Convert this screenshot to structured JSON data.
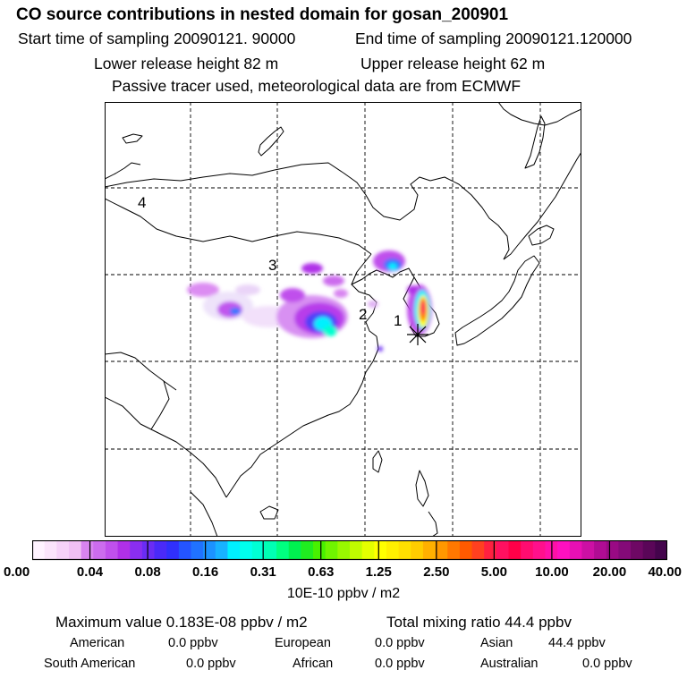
{
  "header": {
    "title": "CO  source contributions in nested domain for gosan_200901",
    "start_sampling": "Start time of sampling 20090121. 90000",
    "end_sampling": "End time of sampling 20090121.120000",
    "lower_release": "Lower release height   82 m",
    "upper_release": "Upper release height   62 m",
    "tracer_note": "Passive tracer used, meteorological data are from ECMWF"
  },
  "map": {
    "region_labels": [
      "1",
      "2",
      "3",
      "4"
    ],
    "receptor_marker": "asterisk-icon"
  },
  "colorbar": {
    "ticks": [
      "0.00",
      "0.04",
      "0.08",
      "0.16",
      "0.31",
      "0.63",
      "1.25",
      "2.50",
      "5.00",
      "10.00",
      "20.00",
      "40.00"
    ],
    "unit_label": "10E-10 ppbv / m2",
    "colors": [
      "#fff3ff",
      "#fbe4fb",
      "#f6d2f8",
      "#f0c0f4",
      "#d884f0",
      "#cc6cee",
      "#c050ec",
      "#b030e8",
      "#8a2ef0",
      "#6a2cf4",
      "#4a2af8",
      "#3030fc",
      "#2454ff",
      "#2072ff",
      "#1c92ff",
      "#18b2ff",
      "#00f0ff",
      "#00ffee",
      "#00ffd4",
      "#00ffb4",
      "#00ff80",
      "#00f050",
      "#20ec20",
      "#48f000",
      "#70f400",
      "#98f800",
      "#c0fc00",
      "#e4ff00",
      "#ffff00",
      "#fff000",
      "#ffe000",
      "#ffcc00",
      "#ffb000",
      "#ff9800",
      "#ff7800",
      "#ff5a00",
      "#ff4020",
      "#ff2040",
      "#ff1060",
      "#ff0048",
      "#ff0c70",
      "#ff108c",
      "#ff10a8",
      "#ff10c0",
      "#e810b4",
      "#cc10a4",
      "#b00c94",
      "#9a0a84",
      "#840a78",
      "#6e0864",
      "#5a0658",
      "#44044c"
    ]
  },
  "summary": {
    "max_value": "Maximum value  0.183E-08 ppbv / m2",
    "total_mixing": "Total mixing ratio       44.4 ppbv"
  },
  "sources": [
    {
      "name": "American",
      "value": "0.0 ppbv"
    },
    {
      "name": "European",
      "value": "0.0 ppbv"
    },
    {
      "name": "Asian",
      "value": "44.4 ppbv"
    },
    {
      "name": "South American",
      "value": "0.0 ppbv"
    },
    {
      "name": "African",
      "value": "0.0 ppbv"
    },
    {
      "name": "Australian",
      "value": "0.0 ppbv"
    }
  ]
}
